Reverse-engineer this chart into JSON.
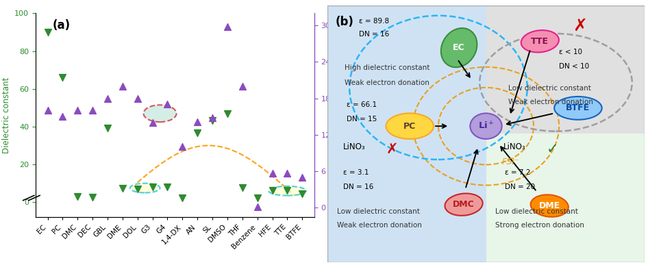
{
  "categories": [
    "EC",
    "PC",
    "DMC",
    "DEC",
    "GBL",
    "DME",
    "DOL",
    "G3",
    "G4",
    "1,4-DX",
    "AN",
    "SL",
    "DMSO",
    "THF",
    "Benzene",
    "HFE",
    "TTE",
    "BTFE"
  ],
  "dielectric": [
    89.8,
    66.1,
    3.1,
    2.8,
    39.1,
    7.2,
    7.1,
    7.9,
    7.9,
    2.2,
    36.6,
    43.3,
    46.7,
    7.6,
    2.3,
    6.4,
    6.2,
    4.4
  ],
  "donor_number": [
    16,
    15,
    16,
    16,
    18,
    20,
    18,
    14,
    17,
    10,
    14.1,
    14.8,
    29.8,
    20,
    0.1,
    5.7,
    5.7,
    5.0
  ],
  "dielectric_color": "#2e8b2e",
  "donor_color": "#8b4bbf",
  "ylim_dielectric": [
    -8,
    100
  ],
  "ylim_donor": [
    -1.6,
    32
  ],
  "yticks_dielectric": [
    0,
    20,
    40,
    60,
    80,
    100
  ],
  "yticks_donor": [
    0,
    6,
    12,
    18,
    24,
    30
  ]
}
